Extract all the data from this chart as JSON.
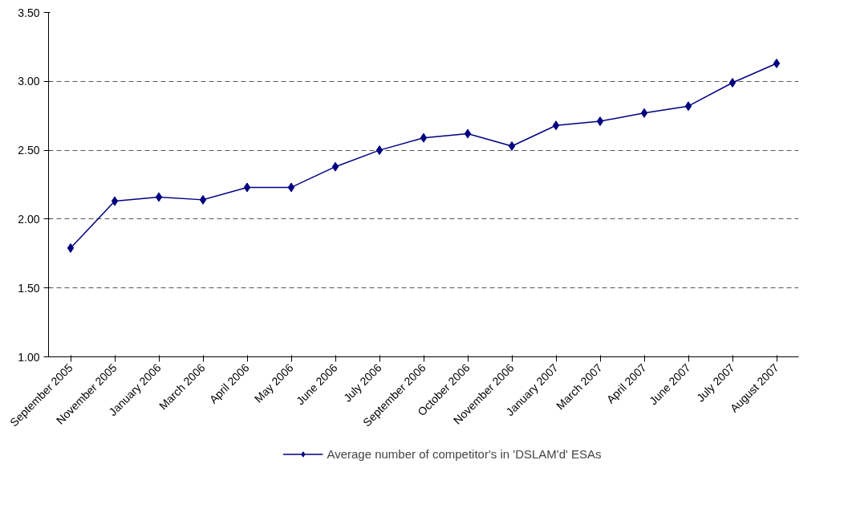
{
  "chart_data": {
    "type": "line",
    "categories": [
      "September 2005",
      "November 2005",
      "January 2006",
      "March 2006",
      "April 2006",
      "May 2006",
      "June 2006",
      "July 2006",
      "September 2006",
      "October 2006",
      "November 2006",
      "January 2007",
      "March 2007",
      "April 2007",
      "June 2007",
      "July 2007",
      "August 2007"
    ],
    "series": [
      {
        "name": "Average number of competitor's in 'DSLAM'd' ESAs",
        "color": "#000080",
        "values": [
          1.79,
          2.13,
          2.16,
          2.14,
          2.23,
          2.23,
          2.38,
          2.5,
          2.59,
          2.62,
          2.53,
          2.68,
          2.71,
          2.77,
          2.82,
          2.99,
          3.13
        ]
      }
    ],
    "ylim": [
      1.0,
      3.5
    ],
    "yticks": [
      {
        "value": 1.0,
        "label": "1.00"
      },
      {
        "value": 1.5,
        "label": "1.50"
      },
      {
        "value": 2.0,
        "label": "2.00"
      },
      {
        "value": 2.5,
        "label": "2.50"
      },
      {
        "value": 3.0,
        "label": "3.00"
      },
      {
        "value": 3.5,
        "label": "3.50"
      }
    ],
    "grid": "y",
    "legend": "bottom",
    "marker": "diamond",
    "line_style": "solid"
  }
}
